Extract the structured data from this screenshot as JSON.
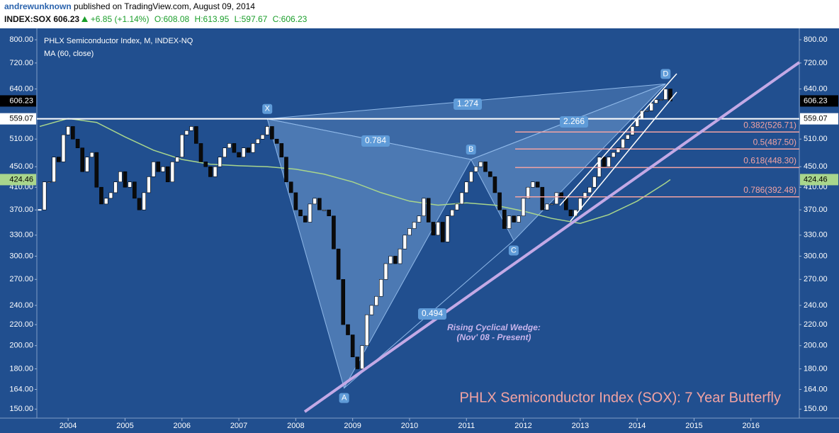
{
  "header": {
    "author": "andrewunknown",
    "published": "published on TradingView.com, August 09, 2014",
    "symbol": "INDEX:SOX",
    "last": "606.23",
    "change": "+6.85 (+1.14%)",
    "open": "O:608.08",
    "high": "H:613.95",
    "low": "L:597.67",
    "close": "C:606.23"
  },
  "chart_data": {
    "type": "candlestick",
    "title": "PHLX Semiconductor Index, M, INDEX-NQ",
    "annotation": "PHLX Semiconductor Index (SOX): 7 Year Butterfly",
    "wedge_label": [
      "Rising Cyclical Wedge:",
      "(Nov' 08 - Present)"
    ],
    "log_scale": true,
    "up_color": "#ffffff",
    "down_color": "#0b0b0b",
    "xlim": [
      2003.45,
      2016.85
    ],
    "xticks": [
      2004,
      2005,
      2006,
      2007,
      2008,
      2009,
      2010,
      2011,
      2012,
      2013,
      2014,
      2015,
      2016
    ],
    "ylim": [
      144,
      829
    ],
    "yticks": [
      {
        "value": 150,
        "label": "150.00"
      },
      {
        "value": 164,
        "label": "164.00"
      },
      {
        "value": 180,
        "label": "180.00"
      },
      {
        "value": 200,
        "label": "200.00"
      },
      {
        "value": 220,
        "label": "220.00"
      },
      {
        "value": 240,
        "label": "240.00"
      },
      {
        "value": 270,
        "label": "270.00"
      },
      {
        "value": 300,
        "label": "300.00"
      },
      {
        "value": 330,
        "label": "330.00"
      },
      {
        "value": 370,
        "label": "370.00"
      },
      {
        "value": 410,
        "label": "410.00"
      },
      {
        "value": 450,
        "label": "450.00"
      },
      {
        "value": 510,
        "label": "510.00"
      },
      {
        "value": 640,
        "label": "640.00"
      },
      {
        "value": 720,
        "label": "720.00"
      },
      {
        "value": 800,
        "label": "800.00"
      }
    ],
    "x": [
      2003.5,
      2003.583,
      2003.667,
      2003.75,
      2003.833,
      2003.917,
      2004.0,
      2004.083,
      2004.167,
      2004.25,
      2004.333,
      2004.417,
      2004.5,
      2004.583,
      2004.667,
      2004.75,
      2004.833,
      2004.917,
      2005.0,
      2005.083,
      2005.167,
      2005.25,
      2005.333,
      2005.417,
      2005.5,
      2005.583,
      2005.667,
      2005.75,
      2005.833,
      2005.917,
      2006.0,
      2006.083,
      2006.167,
      2006.25,
      2006.333,
      2006.417,
      2006.5,
      2006.583,
      2006.667,
      2006.75,
      2006.833,
      2006.917,
      2007.0,
      2007.083,
      2007.167,
      2007.25,
      2007.333,
      2007.417,
      2007.5,
      2007.583,
      2007.667,
      2007.75,
      2007.833,
      2007.917,
      2008.0,
      2008.083,
      2008.167,
      2008.25,
      2008.333,
      2008.417,
      2008.5,
      2008.583,
      2008.667,
      2008.75,
      2008.833,
      2008.917,
      2009.0,
      2009.083,
      2009.167,
      2009.25,
      2009.333,
      2009.417,
      2009.5,
      2009.583,
      2009.667,
      2009.75,
      2009.833,
      2009.917,
      2010.0,
      2010.083,
      2010.167,
      2010.25,
      2010.333,
      2010.417,
      2010.5,
      2010.583,
      2010.667,
      2010.75,
      2010.833,
      2010.917,
      2011.0,
      2011.083,
      2011.167,
      2011.25,
      2011.333,
      2011.417,
      2011.5,
      2011.583,
      2011.667,
      2011.75,
      2011.833,
      2011.917,
      2012.0,
      2012.083,
      2012.167,
      2012.25,
      2012.333,
      2012.417,
      2012.5,
      2012.583,
      2012.667,
      2012.75,
      2012.833,
      2012.917,
      2013.0,
      2013.083,
      2013.167,
      2013.25,
      2013.333,
      2013.417,
      2013.5,
      2013.583,
      2013.667,
      2013.75,
      2013.833,
      2013.917,
      2014.0,
      2014.083,
      2014.167,
      2014.25,
      2014.333,
      2014.417,
      2014.5,
      2014.583
    ],
    "closes": [
      370,
      420,
      420,
      470,
      460,
      520,
      540,
      510,
      490,
      440,
      470,
      480,
      410,
      380,
      390,
      400,
      420,
      440,
      410,
      420,
      390,
      370,
      400,
      430,
      460,
      440,
      450,
      420,
      460,
      470,
      520,
      530,
      540,
      500,
      460,
      450,
      430,
      450,
      470,
      490,
      500,
      480,
      470,
      490,
      480,
      500,
      510,
      520,
      540,
      510,
      500,
      470,
      420,
      400,
      370,
      360,
      350,
      380,
      390,
      370,
      370,
      360,
      310,
      270,
      220,
      210,
      190,
      180,
      200,
      230,
      240,
      250,
      270,
      290,
      300,
      290,
      310,
      330,
      340,
      350,
      360,
      390,
      350,
      330,
      350,
      320,
      360,
      370,
      380,
      400,
      420,
      440,
      450,
      460,
      440,
      430,
      400,
      370,
      340,
      360,
      350,
      360,
      390,
      410,
      420,
      410,
      370,
      380,
      380,
      400,
      390,
      370,
      360,
      370,
      390,
      400,
      410,
      430,
      470,
      450,
      470,
      480,
      490,
      510,
      520,
      540,
      560,
      580,
      580,
      600,
      610,
      610,
      640,
      606.23
    ],
    "series": [
      {
        "name": "MA (60, close)",
        "color": "#a9d68c",
        "x": [
          2003.5,
          2004.0,
          2004.5,
          2005.0,
          2005.5,
          2006.0,
          2006.5,
          2007.0,
          2007.5,
          2008.0,
          2008.5,
          2009.0,
          2009.5,
          2010.0,
          2010.5,
          2011.0,
          2011.5,
          2012.0,
          2012.5,
          2013.0,
          2013.5,
          2014.0,
          2014.5,
          2014.583
        ],
        "values": [
          540,
          560,
          550,
          515,
          485,
          465,
          455,
          452,
          450,
          445,
          435,
          420,
          400,
          385,
          378,
          382,
          378,
          368,
          356,
          348,
          362,
          385,
          418,
          424.46
        ]
      }
    ],
    "price_badges": [
      606.23,
      559.07,
      424.46
    ],
    "badge_colors": [
      "#000000",
      "#ffffff",
      "#a9d68c"
    ],
    "badge_text_colors": [
      "#ffffff",
      "#000000",
      "#000000"
    ],
    "fib_color": "#f2a3a3",
    "fib_levels": [
      {
        "value": 526.71,
        "label": "0.382(526.71)"
      },
      {
        "value": 487.5,
        "label": "0.5(487.50)"
      },
      {
        "value": 448.3,
        "label": "0.618(448.30)"
      },
      {
        "value": 392.48,
        "label": "0.786(392.48)"
      }
    ],
    "pattern": {
      "points": [
        {
          "label": "X",
          "x": 2007.5,
          "y": 559
        },
        {
          "label": "A",
          "x": 2008.85,
          "y": 165
        },
        {
          "label": "B",
          "x": 2011.08,
          "y": 465
        },
        {
          "label": "C",
          "x": 2011.83,
          "y": 322
        },
        {
          "label": "D",
          "x": 2014.5,
          "y": 655
        }
      ],
      "ratios": [
        "0.784",
        "1.274",
        "2.266",
        "0.494"
      ]
    }
  }
}
